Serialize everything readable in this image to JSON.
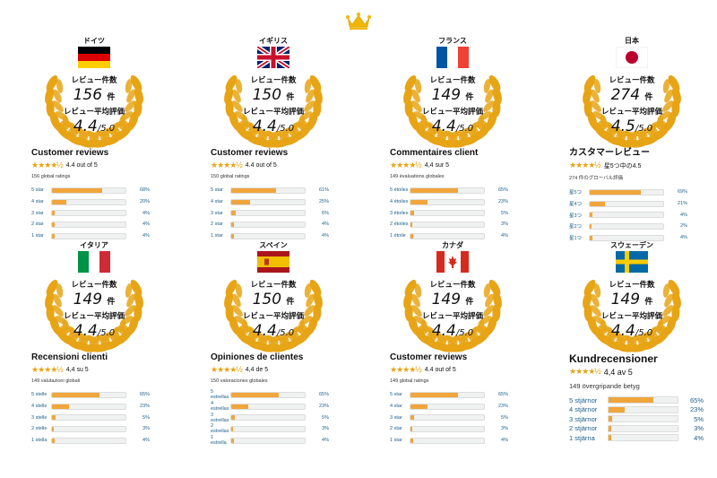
{
  "page": {
    "crown_icon": "crown-icon",
    "gold": "#e7a415"
  },
  "panels": [
    {
      "country": "ドイツ",
      "flag": "flag-germany",
      "count_label": "レビュー件数",
      "count": "156",
      "count_unit": "件",
      "avg_label": "レビュー平均評価",
      "avg": "4.4",
      "avg_suffix": "/5.0",
      "heading": "Customer reviews",
      "rating_text": "4.4 out of 5",
      "global_text": "156 global ratings",
      "stars": "★★★★½",
      "bars": [
        {
          "label": "5 star",
          "pct": "68%",
          "value": 68
        },
        {
          "label": "4 star",
          "pct": "20%",
          "value": 20
        },
        {
          "label": "3 star",
          "pct": "4%",
          "value": 4
        },
        {
          "label": "2 star",
          "pct": "4%",
          "value": 4
        },
        {
          "label": "1 star",
          "pct": "4%",
          "value": 4
        }
      ]
    },
    {
      "country": "イギリス",
      "flag": "flag-uk",
      "count_label": "レビュー件数",
      "count": "150",
      "count_unit": "件",
      "avg_label": "レビュー平均評価",
      "avg": "4.4",
      "avg_suffix": "/5.0",
      "heading": "Customer reviews",
      "rating_text": "4.4 out of 5",
      "global_text": "150 global ratings",
      "stars": "★★★★½",
      "bars": [
        {
          "label": "5 star",
          "pct": "61%",
          "value": 61
        },
        {
          "label": "4 star",
          "pct": "25%",
          "value": 25
        },
        {
          "label": "3 star",
          "pct": "6%",
          "value": 6
        },
        {
          "label": "2 star",
          "pct": "4%",
          "value": 4
        },
        {
          "label": "1 star",
          "pct": "4%",
          "value": 4
        }
      ]
    },
    {
      "country": "フランス",
      "flag": "flag-france",
      "count_label": "レビュー件数",
      "count": "149",
      "count_unit": "件",
      "avg_label": "レビュー平均評価",
      "avg": "4.4",
      "avg_suffix": "/5.0",
      "heading": "Commentaires client",
      "rating_text": "4,4 sur 5",
      "global_text": "149 évaluations globales",
      "stars": "★★★★½",
      "bars": [
        {
          "label": "5 étoiles",
          "pct": "65%",
          "value": 65
        },
        {
          "label": "4 étoiles",
          "pct": "23%",
          "value": 23
        },
        {
          "label": "3 étoiles",
          "pct": "5%",
          "value": 5
        },
        {
          "label": "2 étoiles",
          "pct": "3%",
          "value": 3
        },
        {
          "label": "1 étoile",
          "pct": "4%",
          "value": 4
        }
      ]
    },
    {
      "country": "日本",
      "flag": "flag-japan",
      "count_label": "レビュー件数",
      "count": "274",
      "count_unit": "件",
      "avg_label": "レビュー平均評価",
      "avg": "4.5",
      "avg_suffix": "/5.0",
      "heading": "カスタマーレビュー",
      "rating_text": "星5つ中の4.5",
      "global_text": "274 件のグローバル評価",
      "stars": "★★★★½",
      "bars": [
        {
          "label": "星5つ",
          "pct": "69%",
          "value": 69
        },
        {
          "label": "星4つ",
          "pct": "21%",
          "value": 21
        },
        {
          "label": "星3つ",
          "pct": "4%",
          "value": 4
        },
        {
          "label": "星2つ",
          "pct": "2%",
          "value": 2
        },
        {
          "label": "星1つ",
          "pct": "4%",
          "value": 4
        }
      ]
    },
    {
      "country": "イタリア",
      "flag": "flag-italy",
      "count_label": "レビュー件数",
      "count": "149",
      "count_unit": "件",
      "avg_label": "レビュー平均評価",
      "avg": "4.4",
      "avg_suffix": "/5.0",
      "heading": "Recensioni clienti",
      "rating_text": "4,4 su 5",
      "global_text": "149 valutazioni globali",
      "stars": "★★★★½",
      "bars": [
        {
          "label": "5 stelle",
          "pct": "65%",
          "value": 65
        },
        {
          "label": "4 stelle",
          "pct": "23%",
          "value": 23
        },
        {
          "label": "3 stelle",
          "pct": "5%",
          "value": 5
        },
        {
          "label": "2 stelle",
          "pct": "3%",
          "value": 3
        },
        {
          "label": "1 stella",
          "pct": "4%",
          "value": 4
        }
      ]
    },
    {
      "country": "スペイン",
      "flag": "flag-spain",
      "count_label": "レビュー件数",
      "count": "150",
      "count_unit": "件",
      "avg_label": "レビュー平均評価",
      "avg": "4.4",
      "avg_suffix": "/5.0",
      "heading": "Opiniones de clientes",
      "rating_text": "4,4 de 5",
      "global_text": "150 valoraciones globales",
      "stars": "★★★★½",
      "bars": [
        {
          "label": "5 estrellas",
          "pct": "65%",
          "value": 65
        },
        {
          "label": "4 estrellas",
          "pct": "23%",
          "value": 23
        },
        {
          "label": "3 estrellas",
          "pct": "5%",
          "value": 5
        },
        {
          "label": "2 estrellas",
          "pct": "3%",
          "value": 3
        },
        {
          "label": "1 estrella",
          "pct": "4%",
          "value": 4
        }
      ]
    },
    {
      "country": "カナダ",
      "flag": "flag-canada",
      "count_label": "レビュー件数",
      "count": "149",
      "count_unit": "件",
      "avg_label": "レビュー平均評価",
      "avg": "4.4",
      "avg_suffix": "/5.0",
      "heading": "Customer reviews",
      "rating_text": "4.4 out of 5",
      "global_text": "149 global ratings",
      "stars": "★★★★½",
      "bars": [
        {
          "label": "5 star",
          "pct": "65%",
          "value": 65
        },
        {
          "label": "4 star",
          "pct": "23%",
          "value": 23
        },
        {
          "label": "3 star",
          "pct": "5%",
          "value": 5
        },
        {
          "label": "2 star",
          "pct": "3%",
          "value": 3
        },
        {
          "label": "1 star",
          "pct": "4%",
          "value": 4
        }
      ]
    },
    {
      "country": "スウェーデン",
      "flag": "flag-sweden",
      "count_label": "レビュー件数",
      "count": "149",
      "count_unit": "件",
      "avg_label": "レビュー平均評価",
      "avg": "4.4",
      "avg_suffix": "/5.0",
      "heading": "Kundrecensioner",
      "rating_text": "4,4 av 5",
      "global_text": "149 övergripande betyg",
      "stars": "★★★★½",
      "bars": [
        {
          "label": "5 stjärnor",
          "pct": "65%",
          "value": 65
        },
        {
          "label": "4 stjärnor",
          "pct": "23%",
          "value": 23
        },
        {
          "label": "3 stjärnor",
          "pct": "5%",
          "value": 5
        },
        {
          "label": "2 stjärnor",
          "pct": "3%",
          "value": 3
        },
        {
          "label": "1 stjärna",
          "pct": "4%",
          "value": 4
        }
      ]
    }
  ]
}
